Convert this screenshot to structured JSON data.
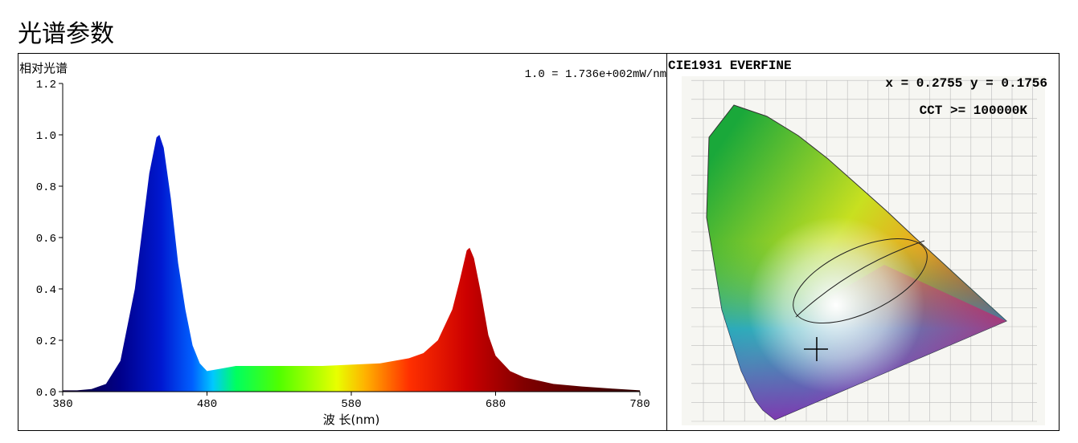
{
  "title": "光谱参数",
  "chart_data": {
    "type": "area",
    "y_label": "相对光谱",
    "annotation": "1.0 = 1.736e+002mW/nm",
    "x_label": "波 长(nm)",
    "x": [
      380,
      390,
      400,
      410,
      420,
      430,
      440,
      445,
      447,
      450,
      455,
      460,
      465,
      470,
      475,
      480,
      490,
      500,
      520,
      540,
      560,
      580,
      600,
      620,
      630,
      640,
      650,
      655,
      660,
      662,
      665,
      670,
      675,
      680,
      690,
      700,
      720,
      740,
      760,
      780
    ],
    "values": [
      0.005,
      0.005,
      0.01,
      0.03,
      0.12,
      0.4,
      0.85,
      0.99,
      1.0,
      0.95,
      0.75,
      0.5,
      0.32,
      0.18,
      0.11,
      0.08,
      0.09,
      0.1,
      0.1,
      0.1,
      0.1,
      0.105,
      0.11,
      0.13,
      0.15,
      0.2,
      0.32,
      0.43,
      0.55,
      0.56,
      0.52,
      0.38,
      0.22,
      0.14,
      0.08,
      0.055,
      0.03,
      0.02,
      0.012,
      0.005
    ],
    "xlim": [
      380,
      780
    ],
    "ylim": [
      0,
      1.2
    ],
    "xticks": [
      380,
      480,
      580,
      680,
      780
    ],
    "yticks": [
      {
        "value": 0,
        "label": "0.0"
      },
      0.2,
      0.4,
      0.6,
      0.8,
      {
        "value": 1,
        "label": "1.0"
      },
      1.2
    ]
  },
  "cie": {
    "label": "CIE1931   EVERFINE",
    "coordinates": "x = 0.2755 y = 0.1756",
    "cct": "CCT >= 100000K"
  }
}
